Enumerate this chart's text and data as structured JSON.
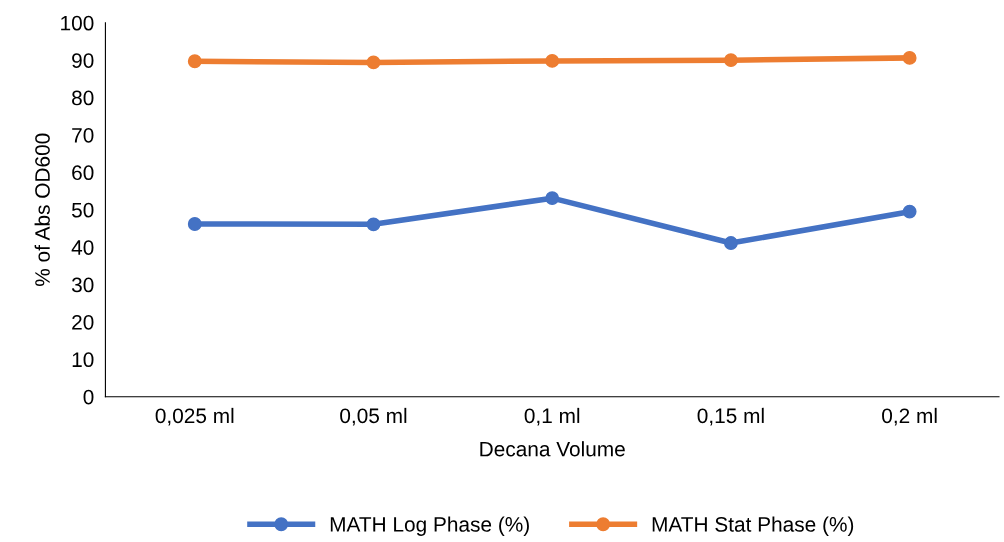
{
  "chart_data": {
    "type": "line",
    "xlabel": "Decana Volume",
    "ylabel": "% of Abs OD600",
    "categories": [
      "0,025 ml",
      "0,05 ml",
      "0,1 ml",
      "0,15 ml",
      "0,2 ml"
    ],
    "series": [
      {
        "name": "MATH Log Phase (%)",
        "color": "#4472c4",
        "values": [
          46.2,
          46.1,
          53.1,
          41.1,
          49.5
        ]
      },
      {
        "name": "MATH Stat Phase (%)",
        "color": "#ed7d31",
        "values": [
          89.7,
          89.4,
          89.8,
          90.0,
          90.6
        ]
      }
    ],
    "ylim": [
      0,
      100
    ],
    "yticks": [
      0,
      10,
      20,
      30,
      40,
      50,
      60,
      70,
      80,
      90,
      100
    ],
    "grid": false,
    "legend": "bottom",
    "marker": "circle",
    "line_style": "solid"
  }
}
